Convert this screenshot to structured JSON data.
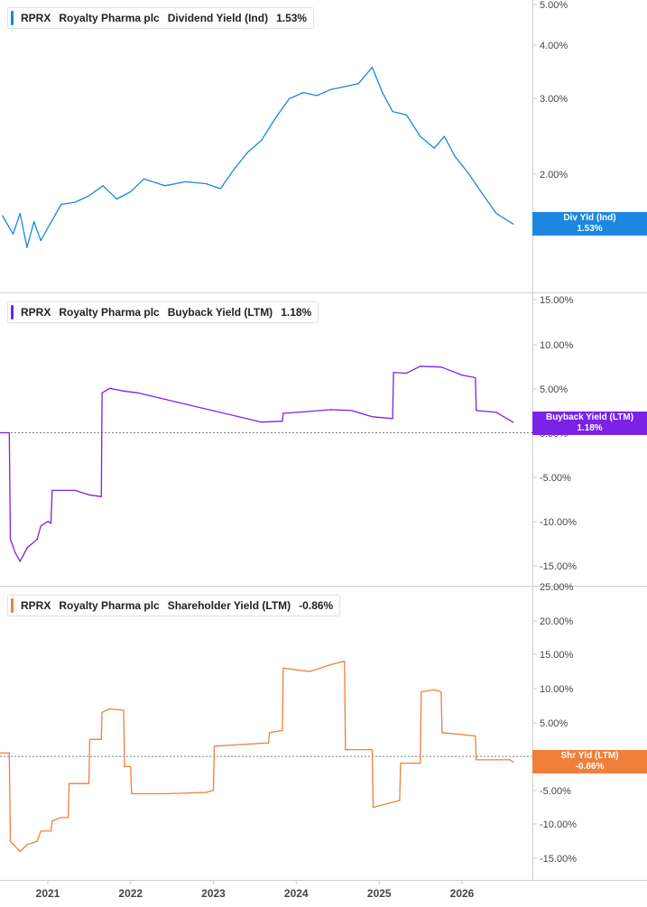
{
  "x_axis": {
    "labels": [
      "2021",
      "2022",
      "2023",
      "2024",
      "2025",
      "2026"
    ],
    "range": [
      "2020-06-01",
      "2026-09-01"
    ]
  },
  "colors": {
    "dividend": "#1b87e0",
    "buyback": "#7a22e6",
    "shareholder": "#f07f3c",
    "grid": "#cfcfcf",
    "zero_line": "#555555",
    "axis_text": "#444444"
  },
  "panels": [
    {
      "id": "dividend",
      "ticker": "RPRX",
      "company": "Royalty Pharma plc",
      "metric": "Dividend Yield (Ind)",
      "value": "1.53%",
      "badge_line1": "Div Yld (Ind)",
      "badge_line2": "1.53%",
      "y_ticks": [
        "5.00%",
        "4.00%",
        "3.00%",
        "2.00%"
      ],
      "scale": "log",
      "ylim": [
        1.2,
        5.0
      ]
    },
    {
      "id": "buyback",
      "ticker": "RPRX",
      "company": "Royalty Pharma plc",
      "metric": "Buyback Yield (LTM)",
      "value": "1.18%",
      "badge_line1": "Buyback Yield (LTM)",
      "badge_line2": "1.18%",
      "y_ticks": [
        "15.00%",
        "10.00%",
        "5.00%",
        "0.00%",
        "-5.00%",
        "-10.00%",
        "-15.00%"
      ],
      "scale": "linear",
      "ylim": [
        -15.5,
        15
      ]
    },
    {
      "id": "shareholder",
      "ticker": "RPRX",
      "company": "Royalty Pharma plc",
      "metric": "Shareholder Yield (LTM)",
      "value": "-0.86%",
      "badge_line1": "Shr Yld (LTM)",
      "badge_line2": "-0.86%",
      "y_ticks": [
        "25.00%",
        "20.00%",
        "15.00%",
        "10.00%",
        "5.00%",
        "0.00%",
        "-5.00%",
        "-10.00%",
        "-15.00%"
      ],
      "scale": "linear",
      "ylim": [
        -16.5,
        25
      ]
    }
  ],
  "chart_data": [
    {
      "type": "line",
      "title": "RPRX Royalty Pharma plc Dividend Yield (Ind) 1.53%",
      "ylabel": "",
      "scale": "log",
      "ylim": [
        1.2,
        5.0
      ],
      "series": [
        {
          "name": "Dividend Yield (Ind)",
          "x": [
            "2020-06-15",
            "2020-08-01",
            "2020-09-01",
            "2020-10-01",
            "2020-11-01",
            "2020-12-01",
            "2021-01-01",
            "2021-03-01",
            "2021-05-01",
            "2021-07-01",
            "2021-09-01",
            "2021-11-01",
            "2022-01-01",
            "2022-03-01",
            "2022-06-01",
            "2022-09-01",
            "2022-12-01",
            "2023-02-01",
            "2023-04-01",
            "2023-06-01",
            "2023-08-01",
            "2023-10-01",
            "2023-12-01",
            "2024-02-01",
            "2024-04-01",
            "2024-06-01",
            "2024-08-01",
            "2024-10-01",
            "2024-12-01",
            "2025-01-15",
            "2025-03-01",
            "2025-05-01",
            "2025-07-01",
            "2025-09-01",
            "2025-10-15",
            "2025-12-01",
            "2026-02-01",
            "2026-04-01",
            "2026-06-01",
            "2026-08-15"
          ],
          "y": [
            1.6,
            1.45,
            1.62,
            1.35,
            1.55,
            1.4,
            1.5,
            1.7,
            1.72,
            1.78,
            1.88,
            1.75,
            1.82,
            1.95,
            1.88,
            1.92,
            1.9,
            1.85,
            2.05,
            2.25,
            2.4,
            2.7,
            3.0,
            3.1,
            3.05,
            3.15,
            3.2,
            3.25,
            3.55,
            3.1,
            2.8,
            2.75,
            2.45,
            2.3,
            2.45,
            2.2,
            2.0,
            1.8,
            1.62,
            1.53
          ]
        }
      ]
    },
    {
      "type": "line",
      "title": "RPRX Royalty Pharma plc Buyback Yield (LTM) 1.18%",
      "ylabel": "",
      "ylim": [
        -15.5,
        15
      ],
      "series": [
        {
          "name": "Buyback Yield (LTM)",
          "x": [
            "2020-06-01",
            "2020-07-15",
            "2020-07-20",
            "2020-08-10",
            "2020-09-01",
            "2020-10-01",
            "2020-11-15",
            "2020-12-01",
            "2021-01-01",
            "2021-01-15",
            "2021-01-20",
            "2021-03-01",
            "2021-05-01",
            "2021-07-01",
            "2021-08-25",
            "2021-08-28",
            "2021-10-01",
            "2021-12-01",
            "2022-02-01",
            "2023-08-01",
            "2023-11-01",
            "2023-11-05",
            "2024-03-01",
            "2024-06-01",
            "2024-09-01",
            "2024-12-01",
            "2025-03-01",
            "2025-03-05",
            "2025-05-01",
            "2025-07-01",
            "2025-10-01",
            "2026-01-01",
            "2026-03-01",
            "2026-03-05",
            "2026-06-01",
            "2026-08-15"
          ],
          "y": [
            0,
            0,
            -12,
            -13.5,
            -14.5,
            -13.0,
            -12.0,
            -10.5,
            -10.0,
            -10.2,
            -6.5,
            -6.5,
            -6.5,
            -7.0,
            -7.2,
            4.5,
            5.0,
            4.7,
            4.5,
            1.2,
            1.3,
            2.2,
            2.4,
            2.6,
            2.5,
            1.8,
            1.6,
            6.8,
            6.7,
            7.5,
            7.4,
            6.5,
            6.2,
            2.5,
            2.3,
            1.18
          ]
        }
      ]
    },
    {
      "type": "line",
      "title": "RPRX Royalty Pharma plc Shareholder Yield (LTM) -0.86%",
      "ylabel": "",
      "ylim": [
        -16.5,
        25
      ],
      "series": [
        {
          "name": "Shareholder Yield (LTM)",
          "x": [
            "2020-06-01",
            "2020-07-15",
            "2020-07-20",
            "2020-09-01",
            "2020-10-01",
            "2020-11-15",
            "2020-12-01",
            "2021-01-15",
            "2021-01-20",
            "2021-03-01",
            "2021-04-01",
            "2021-04-05",
            "2021-06-01",
            "2021-07-01",
            "2021-07-05",
            "2021-08-01",
            "2021-08-25",
            "2021-08-28",
            "2021-10-01",
            "2021-12-01",
            "2021-12-05",
            "2022-01-01",
            "2022-01-05",
            "2022-06-01",
            "2022-12-01",
            "2023-01-01",
            "2023-01-05",
            "2023-09-01",
            "2023-09-05",
            "2023-11-01",
            "2023-11-05",
            "2024-03-01",
            "2024-06-01",
            "2024-08-01",
            "2024-08-05",
            "2024-12-01",
            "2024-12-05",
            "2025-02-01",
            "2025-04-01",
            "2025-04-05",
            "2025-07-01",
            "2025-07-05",
            "2025-09-01",
            "2025-10-01",
            "2025-10-05",
            "2026-03-01",
            "2026-03-05",
            "2026-08-01",
            "2026-08-15"
          ],
          "y": [
            0.5,
            0.5,
            -12.5,
            -14.0,
            -13.0,
            -12.5,
            -11.0,
            -11.0,
            -9.5,
            -9.0,
            -9.0,
            -4.0,
            -4.0,
            -4.0,
            2.5,
            2.5,
            2.5,
            6.5,
            7.0,
            6.8,
            -1.5,
            -1.5,
            -5.5,
            -5.5,
            -5.3,
            -5.0,
            1.5,
            2.0,
            3.5,
            3.8,
            13.0,
            12.5,
            13.5,
            14.0,
            1.0,
            1.0,
            -7.5,
            -7.0,
            -6.5,
            -1.0,
            -1.0,
            9.5,
            9.8,
            9.5,
            3.5,
            3.0,
            -0.5,
            -0.5,
            -0.86
          ]
        }
      ]
    }
  ]
}
